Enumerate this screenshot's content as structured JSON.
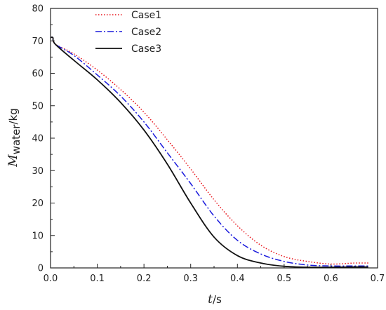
{
  "chart_data": {
    "type": "line",
    "title": "",
    "xlabel": {
      "var": "t",
      "unit": "/s"
    },
    "ylabel": {
      "var": "M",
      "sub": "water",
      "unit": "/kg"
    },
    "xlim": [
      0,
      0.7
    ],
    "ylim": [
      0,
      80
    ],
    "xticks": [
      0.0,
      0.1,
      0.2,
      0.3,
      0.4,
      0.5,
      0.6,
      0.7
    ],
    "xtick_labels": [
      "0.0",
      "0.1",
      "0.2",
      "0.3",
      "0.4",
      "0.5",
      "0.6",
      "0.7"
    ],
    "yticks": [
      0,
      10,
      20,
      30,
      40,
      50,
      60,
      70,
      80
    ],
    "ytick_labels": [
      "0",
      "10",
      "20",
      "30",
      "40",
      "50",
      "60",
      "70",
      "80"
    ],
    "grid": false,
    "legend_position": "top-center",
    "series": [
      {
        "name": "Case1",
        "color": "#e8141b",
        "style": "dotted",
        "x": [
          0.0,
          0.005,
          0.01,
          0.05,
          0.1,
          0.15,
          0.2,
          0.25,
          0.3,
          0.35,
          0.4,
          0.45,
          0.5,
          0.55,
          0.6,
          0.65,
          0.68
        ],
        "y": [
          71,
          71,
          69,
          66,
          61,
          55,
          48,
          39.5,
          30.5,
          21,
          13,
          7,
          3.5,
          2,
          1.2,
          1.5,
          1.5
        ]
      },
      {
        "name": "Case2",
        "color": "#1a1adc",
        "style": "dashdot",
        "x": [
          0.0,
          0.005,
          0.01,
          0.05,
          0.1,
          0.15,
          0.2,
          0.25,
          0.3,
          0.35,
          0.4,
          0.45,
          0.5,
          0.55,
          0.6,
          0.65,
          0.68
        ],
        "y": [
          71,
          71,
          69,
          65.5,
          59.5,
          53,
          45,
          35.5,
          26,
          16,
          8.5,
          4.3,
          2,
          0.9,
          0.6,
          0.6,
          0.6
        ]
      },
      {
        "name": "Case3",
        "color": "#111111",
        "style": "solid",
        "x": [
          0.0,
          0.005,
          0.01,
          0.05,
          0.1,
          0.15,
          0.2,
          0.25,
          0.3,
          0.35,
          0.4,
          0.45,
          0.5,
          0.55,
          0.6,
          0.65,
          0.68
        ],
        "y": [
          71,
          71,
          69,
          64,
          58,
          51,
          42.5,
          32,
          20,
          9.5,
          3.8,
          1.5,
          0.5,
          0.2,
          0.2,
          0.3,
          0.3
        ]
      }
    ]
  }
}
